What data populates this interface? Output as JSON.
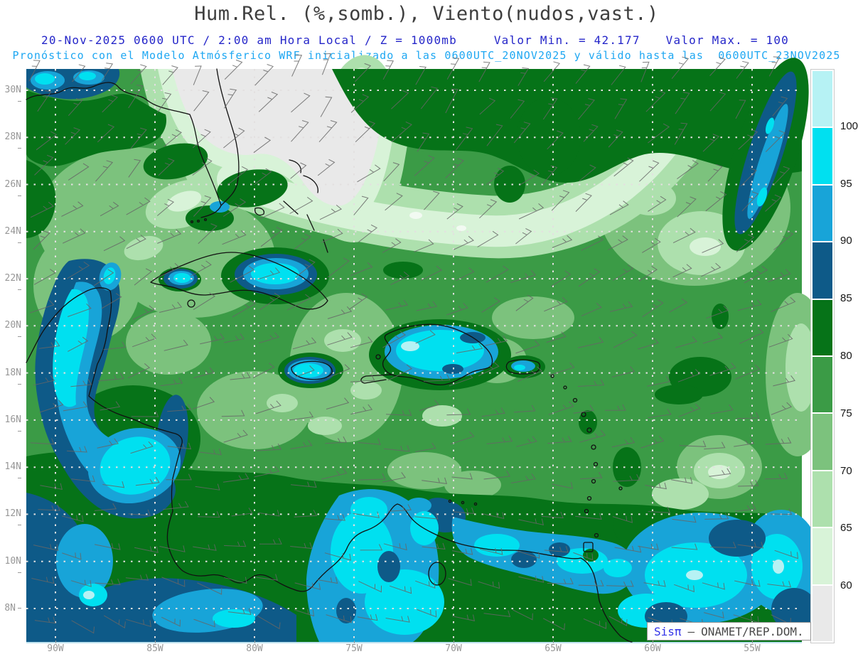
{
  "header": {
    "title": "Hum.Rel. (%,somb.), Viento(nudos,vast.)",
    "model_line": {
      "datetime": "20-Nov-2025 0600 UTC / 2:00 am Hora Local / Z = 1000mb",
      "valor_min": "Valor Min. = 42.177",
      "valor_max": "Valor Max. = 100"
    },
    "forecast_line": "Pronóstico con el Modelo Atmósferico WRF inicializado a las 0600UTC_20NOV2025 y válido hasta las  0600UTC_23NOV2025"
  },
  "axes": {
    "lat_labels": [
      "30N",
      "28N",
      "26N",
      "24N",
      "22N",
      "20N",
      "18N",
      "16N",
      "14N",
      "12N",
      "10N",
      "8N"
    ],
    "lon_labels": [
      "90W",
      "85W",
      "80W",
      "75W",
      "70W",
      "65W",
      "60W",
      "55W"
    ]
  },
  "colorbar": {
    "boundary_labels": [
      "100",
      "95",
      "90",
      "85",
      "80",
      "75",
      "70",
      "65",
      "60"
    ],
    "segment_colors": [
      "#b6f2f4",
      "#00e0f0",
      "#18a4d8",
      "#0e5a88",
      "#067318",
      "#3b9b46",
      "#7cc27d",
      "#ade0ad",
      "#d8f3d8",
      "#e9e9e9"
    ]
  },
  "watermark": {
    "brand": "Sisπ",
    "separator": "–",
    "credit": "ONAMET/REP.DOM."
  }
}
